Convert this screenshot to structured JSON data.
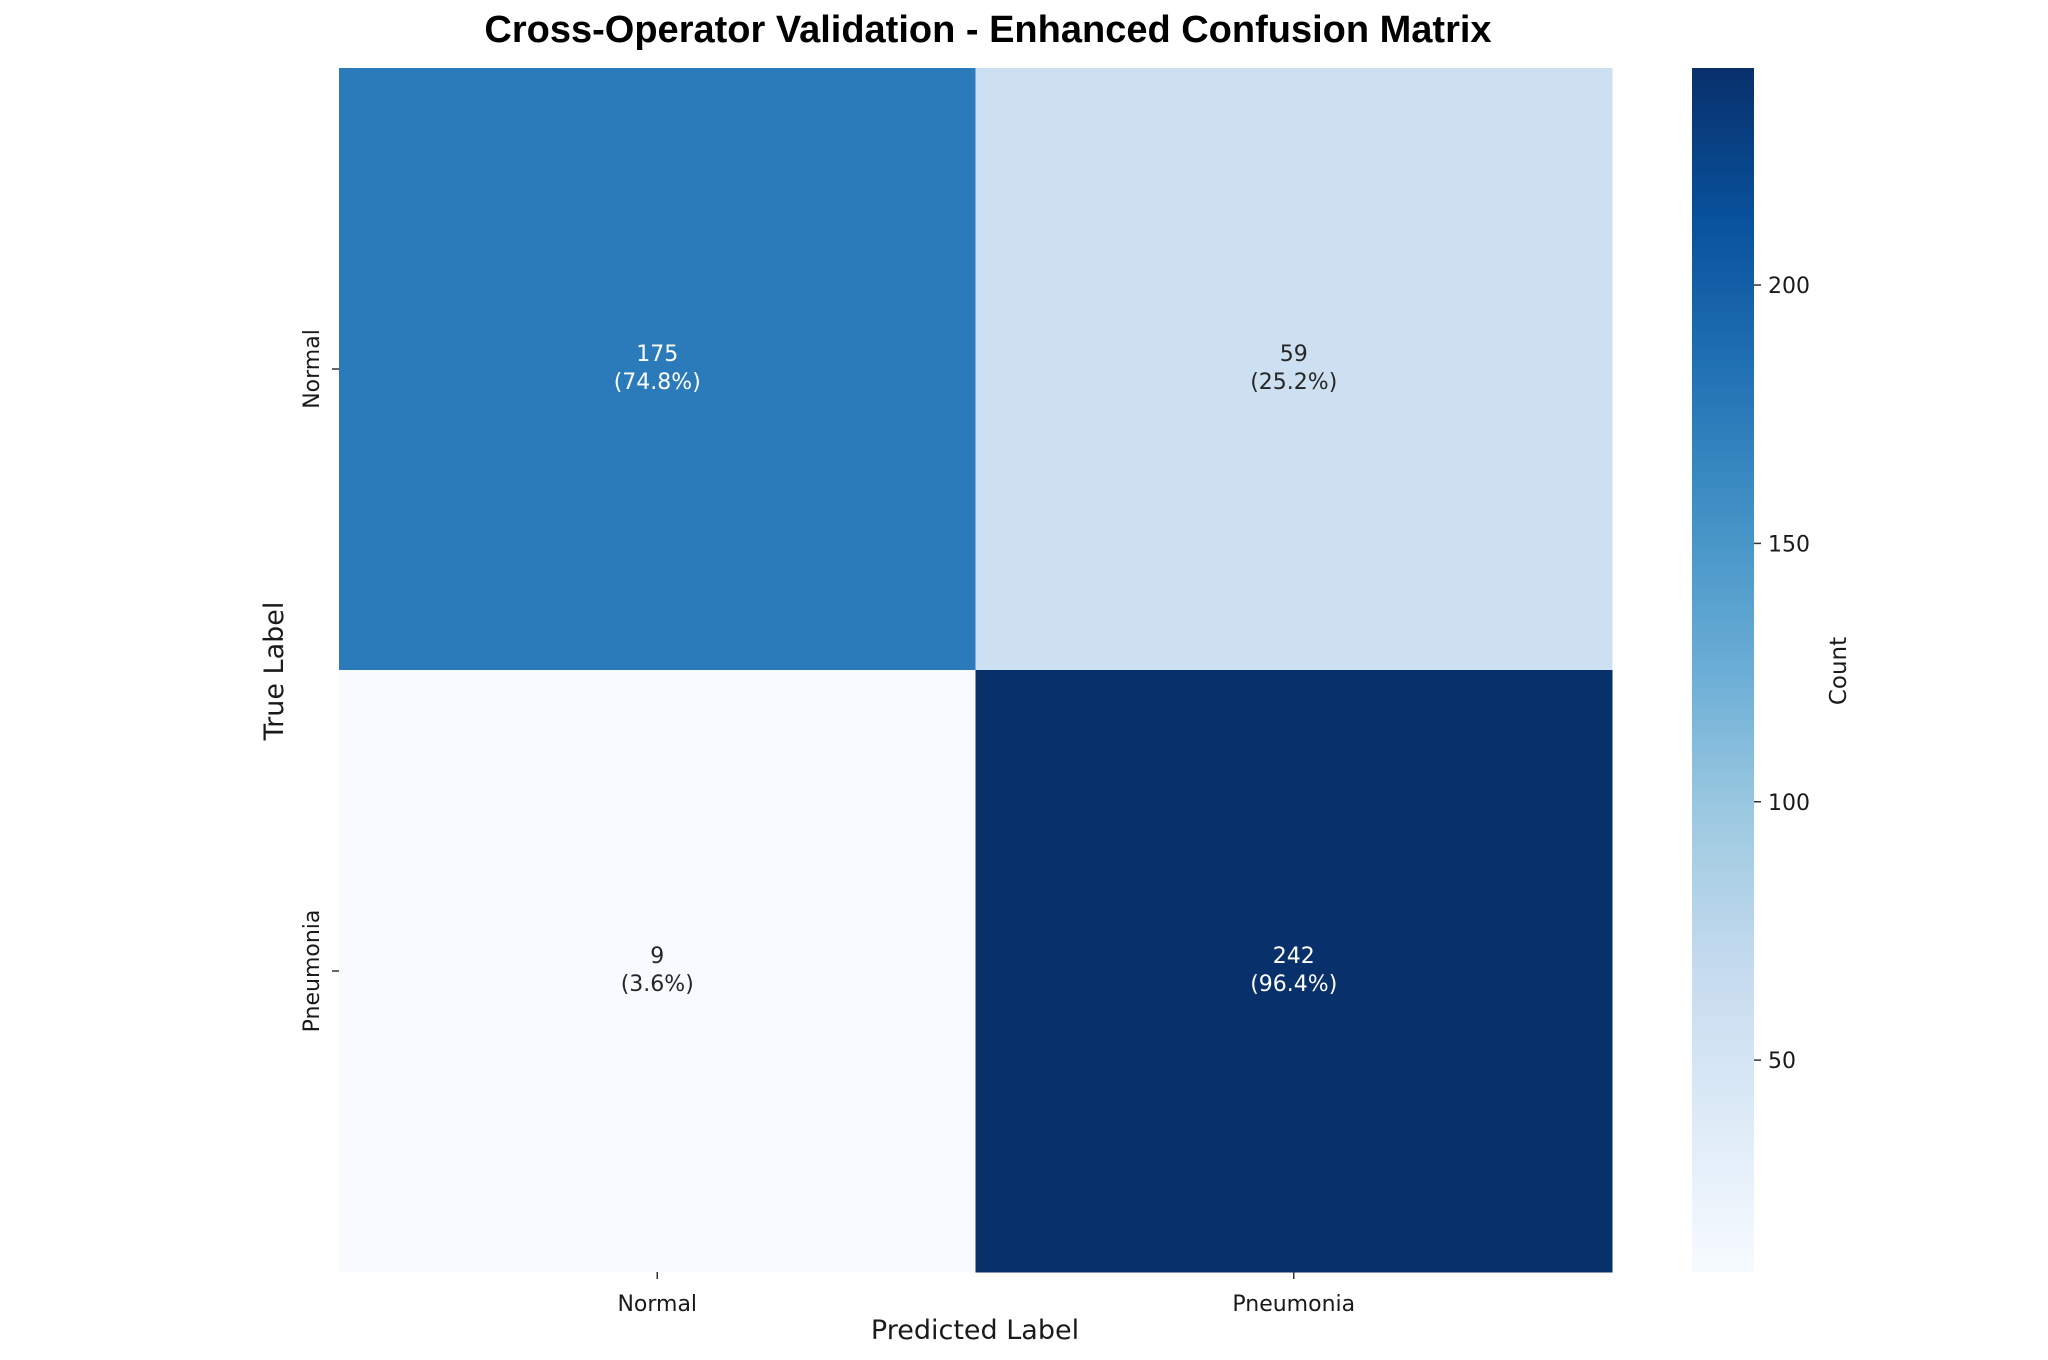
{
  "chart_data": {
    "type": "heatmap",
    "title": "Cross-Operator Validation - Enhanced Confusion Matrix",
    "xlabel": "Predicted Label",
    "ylabel": "True Label",
    "x_categories": [
      "Normal",
      "Pneumonia"
    ],
    "y_categories": [
      "Normal",
      "Pneumonia"
    ],
    "values": [
      [
        175,
        59
      ],
      [
        9,
        242
      ]
    ],
    "cell_labels": [
      [
        "175",
        "59"
      ],
      [
        "9",
        "242"
      ]
    ],
    "cell_percent_labels": [
      [
        "(74.8%)",
        "(25.2%)"
      ],
      [
        "(3.6%)",
        "(96.4%)"
      ]
    ],
    "colorbar": {
      "label": "Count",
      "range": [
        9,
        242
      ],
      "ticks": [
        50,
        100,
        150,
        200
      ],
      "tick_labels": [
        "50",
        "100",
        "150",
        "200"
      ],
      "colormap": "Blues"
    },
    "colors": {
      "low": "#f7fbff",
      "high": "#08306b",
      "text_light": "#ffffff",
      "text_dark": "#262626"
    }
  }
}
